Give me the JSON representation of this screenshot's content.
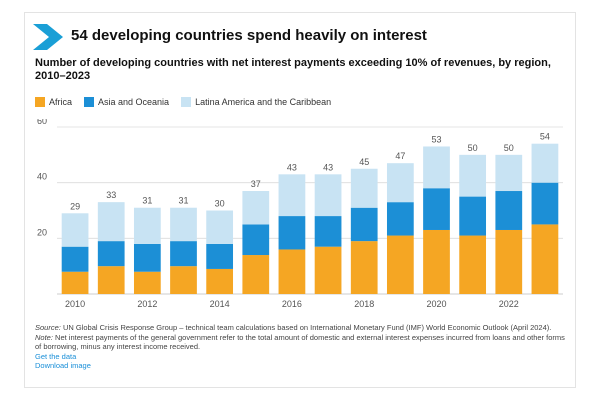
{
  "header": {
    "title": "54 developing countries spend heavily on interest",
    "subtitle": "Number of developing countries with net interest payments exceeding 10% of revenues, by region, 2010–2023"
  },
  "colors": {
    "brand": "#1a9fd6",
    "africa": "#f5a623",
    "asia": "#1c8fd6",
    "latam": "#c8e3f3"
  },
  "legend": [
    {
      "label": "Africa",
      "color": "#f5a623"
    },
    {
      "label": "Asia and Oceania",
      "color": "#1c8fd6"
    },
    {
      "label": "Latina America and the Caribbean",
      "color": "#c8e3f3"
    }
  ],
  "chart_data": {
    "type": "bar",
    "stacked": true,
    "title": "",
    "xlabel": "",
    "ylabel": "",
    "ylim": [
      0,
      60
    ],
    "yticks": [
      20,
      40,
      60
    ],
    "grid": true,
    "legend_position": "top-left",
    "categories": [
      "2010",
      "2011",
      "2012",
      "2013",
      "2014",
      "2015",
      "2016",
      "2017",
      "2018",
      "2019",
      "2020",
      "2021",
      "2022",
      "2023"
    ],
    "xtick_labels": [
      "2010",
      "",
      "2012",
      "",
      "2014",
      "",
      "2016",
      "",
      "2018",
      "",
      "2020",
      "",
      "2022",
      ""
    ],
    "totals": [
      "29",
      "33",
      "31",
      "31",
      "30",
      "37",
      "43",
      "43",
      "45",
      "47",
      "53",
      "50",
      "50",
      "54"
    ],
    "series": [
      {
        "name": "Africa",
        "values": [
          8,
          10,
          8,
          10,
          9,
          14,
          16,
          17,
          19,
          21,
          23,
          21,
          23,
          25
        ]
      },
      {
        "name": "Asia and Oceania",
        "values": [
          9,
          9,
          10,
          9,
          9,
          11,
          12,
          11,
          12,
          12,
          15,
          14,
          14,
          15
        ]
      },
      {
        "name": "Latina America and the Caribbean",
        "values": [
          12,
          14,
          13,
          12,
          12,
          12,
          15,
          15,
          14,
          14,
          15,
          15,
          13,
          14
        ]
      }
    ]
  },
  "footer": {
    "source_lead": "Source:",
    "source_text": " UN Global Crisis Response Group – technical team calculations based on International Monetary Fund (IMF) World Economic Outlook (April 2024).",
    "note_lead": "Note:",
    "note_text": " Net interest payments of the general government refer to the total amount of domestic and external interest expenses incurred from loans and other forms of borrowing, minus any interest income received.",
    "get_data": "Get the data",
    "download": "Download image"
  }
}
